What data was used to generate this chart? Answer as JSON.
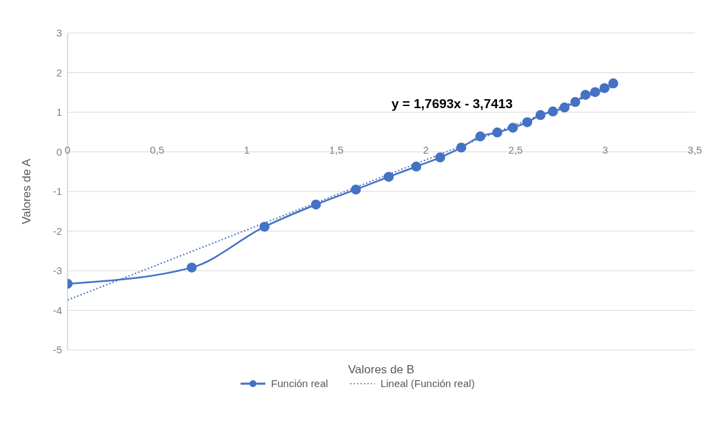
{
  "chart_data": {
    "type": "line",
    "xlabel": "Valores de B",
    "ylabel": "Valores de A",
    "annotations": [
      "y = 1,7693x - 3,7413"
    ],
    "series": [
      {
        "name": "Función real",
        "color": "#4472c4",
        "marker": "circle",
        "line_style": "solid",
        "x": [
          0,
          0.693,
          1.099,
          1.386,
          1.609,
          1.792,
          1.946,
          2.079,
          2.197,
          2.303,
          2.398,
          2.485,
          2.565,
          2.639,
          2.708,
          2.773,
          2.833,
          2.89,
          2.944,
          2.996,
          3.045
        ],
        "values": [
          -3.33,
          -2.92,
          -1.89,
          -1.33,
          -0.95,
          -0.63,
          -0.37,
          -0.14,
          0.11,
          0.39,
          0.49,
          0.61,
          0.75,
          0.93,
          1.02,
          1.12,
          1.26,
          1.44,
          1.51,
          1.61,
          1.73
        ]
      },
      {
        "name": "Lineal (Función real)",
        "color": "#4472c4",
        "marker": "none",
        "line_style": "dotted",
        "x": [
          0,
          3.045
        ],
        "values": [
          -3.74,
          1.65
        ]
      }
    ],
    "xlim": [
      0,
      3.5
    ],
    "xticks": [
      {
        "value": 0,
        "label": "0"
      },
      {
        "value": 0.5,
        "label": "0,5"
      },
      {
        "value": 1,
        "label": "1"
      },
      {
        "value": 1.5,
        "label": "1,5"
      },
      {
        "value": 2,
        "label": "2"
      },
      {
        "value": 2.5,
        "label": "2,5"
      },
      {
        "value": 3,
        "label": "3"
      },
      {
        "value": 3.5,
        "label": "3,5"
      }
    ],
    "ylim": [
      -5,
      3
    ],
    "yticks": [
      -5,
      -4,
      -3,
      -2,
      -1,
      0,
      1,
      2,
      3
    ],
    "grid": "y",
    "legend": "bottom"
  }
}
